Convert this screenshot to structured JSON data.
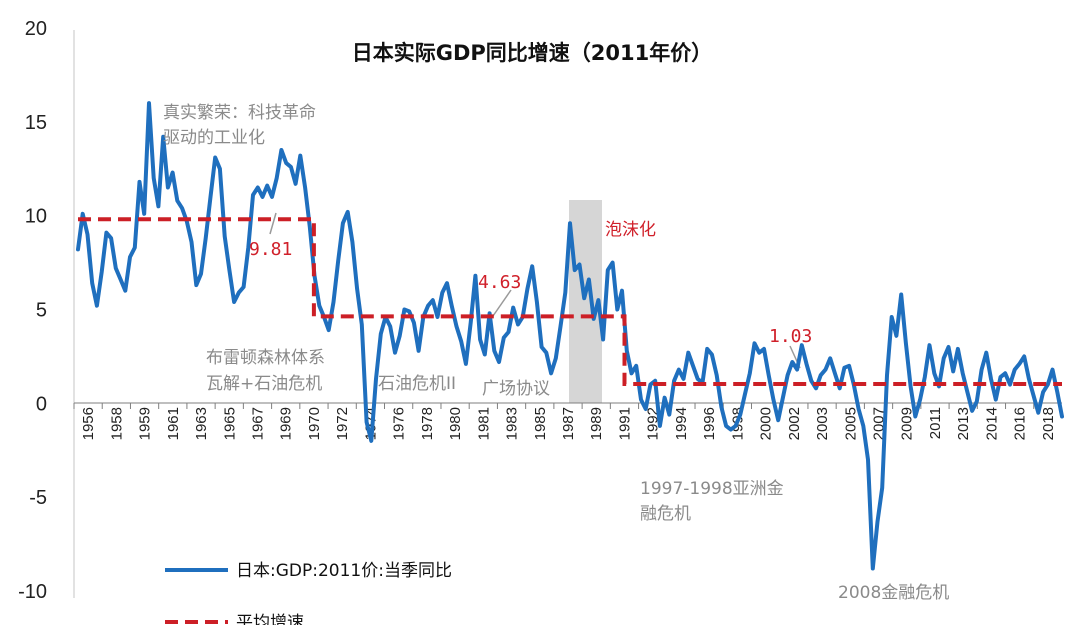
{
  "chart_data": {
    "type": "line",
    "title": "日本实际GDP同比增速（2011年价）",
    "xlabel": "",
    "ylabel": "",
    "ylim": [
      -10,
      20
    ],
    "yticks": [
      "20",
      "15",
      "10",
      "5",
      "0",
      "-5",
      "-10"
    ],
    "xticks": [
      "1956",
      "1958",
      "1959",
      "1961",
      "1963",
      "1965",
      "1967",
      "1969",
      "1970",
      "1972",
      "1974",
      "1976",
      "1978",
      "1980",
      "1981",
      "1983",
      "1985",
      "1987",
      "1989",
      "1991",
      "1992",
      "1994",
      "1996",
      "1998",
      "2000",
      "2002",
      "2003",
      "2005",
      "2007",
      "2009",
      "2011",
      "2013",
      "2014",
      "2016",
      "2018"
    ],
    "grid": false,
    "legend_position": "bottom-left",
    "series": [
      {
        "name": "日本:GDP:2011价:当季同比",
        "color": "#1f6fbe",
        "x_range": [
          "1956",
          "2019"
        ],
        "values": [
          8.2,
          10.1,
          9.0,
          6.4,
          5.2,
          7.0,
          9.1,
          8.8,
          7.2,
          6.6,
          6.0,
          7.8,
          8.3,
          11.8,
          10.1,
          16.0,
          12.0,
          10.5,
          14.2,
          11.5,
          12.3,
          10.8,
          10.4,
          9.7,
          8.6,
          6.3,
          6.9,
          8.8,
          11.0,
          13.1,
          12.5,
          8.9,
          7.1,
          5.4,
          5.9,
          6.2,
          8.3,
          11.1,
          11.5,
          11.0,
          11.6,
          11.0,
          12.0,
          13.5,
          12.8,
          12.6,
          11.7,
          13.2,
          11.5,
          9.4,
          6.8,
          5.2,
          4.6,
          3.9,
          5.4,
          7.6,
          9.6,
          10.2,
          8.6,
          6.1,
          4.2,
          -1.0,
          -2.0,
          1.3,
          3.7,
          4.6,
          4.1,
          2.7,
          3.6,
          5.0,
          4.9,
          4.3,
          2.8,
          4.6,
          5.2,
          5.5,
          4.6,
          5.9,
          6.4,
          5.2,
          4.1,
          3.3,
          2.1,
          4.3,
          6.8,
          3.4,
          2.6,
          4.8,
          2.8,
          2.2,
          3.5,
          3.8,
          5.1,
          4.2,
          4.6,
          6.1,
          7.3,
          5.4,
          3.0,
          2.7,
          1.6,
          2.4,
          4.1,
          5.9,
          9.6,
          7.1,
          7.4,
          5.6,
          6.6,
          4.5,
          5.5,
          3.4,
          7.1,
          7.5,
          5.0,
          6.0,
          2.8,
          1.6,
          2.0,
          0.2,
          -0.3,
          1.0,
          1.2,
          -1.2,
          0.3,
          -0.6,
          1.2,
          1.8,
          1.3,
          2.7,
          2.0,
          1.3,
          1.1,
          2.9,
          2.6,
          1.5,
          -0.2,
          -1.2,
          -1.4,
          -1.2,
          -0.6,
          0.5,
          1.6,
          3.2,
          2.7,
          2.9,
          1.5,
          0.2,
          -0.9,
          0.3,
          1.5,
          2.2,
          1.8,
          3.1,
          2.1,
          1.2,
          0.8,
          1.5,
          1.8,
          2.4,
          1.6,
          0.8,
          1.9,
          2.0,
          1.0,
          -0.3,
          -1.2,
          -3.0,
          -8.8,
          -6.3,
          -4.5,
          1.5,
          4.6,
          3.6,
          5.8,
          3.2,
          0.9,
          -0.7,
          0.2,
          1.4,
          3.1,
          1.6,
          0.9,
          2.4,
          3.0,
          1.7,
          2.9,
          1.6,
          0.6,
          -0.4,
          0.1,
          1.8,
          2.7,
          1.3,
          0.2,
          1.4,
          1.6,
          1.0,
          1.8,
          2.1,
          2.5,
          1.3,
          0.4,
          -0.5,
          0.6,
          1.0,
          1.8,
          0.6,
          -0.7
        ]
      },
      {
        "name": "平均增速",
        "color": "#cc1f26",
        "style": "dashed",
        "segments": [
          {
            "from": "1956",
            "to": "1970",
            "value": 9.81
          },
          {
            "from": "1970",
            "to": "1991",
            "value": 4.63
          },
          {
            "from": "1991",
            "to": "2019",
            "value": 1.03
          }
        ]
      }
    ],
    "average_labels": [
      "9.81",
      "4.63",
      "1.03"
    ],
    "shaded_period": {
      "from": "1987",
      "to": "1989",
      "label": "泡沫化",
      "color": "#d4d4d4"
    },
    "annotations": [
      "真实繁荣：科技革命",
      "驱动的工业化",
      "布雷顿森林体系",
      "瓦解+石油危机",
      "石油危机II",
      "广场协议",
      "1997-1998亚洲金",
      "融危机",
      "2008金融危机"
    ]
  }
}
